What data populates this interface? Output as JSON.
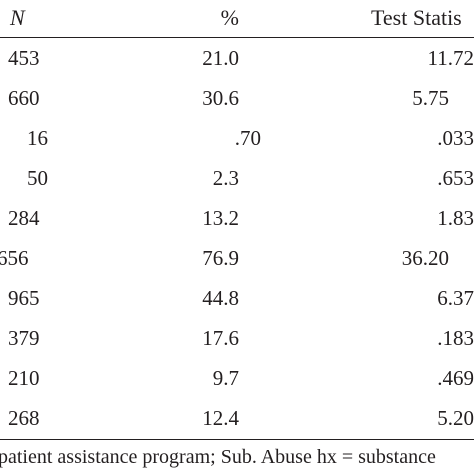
{
  "table": {
    "headers": {
      "n": "N",
      "pct": "%",
      "test": "Test Statis"
    },
    "rows": [
      {
        "n": "453",
        "pct": "21.0",
        "test": "11.72"
      },
      {
        "n": "660",
        "pct": "30.6",
        "test": "5.75"
      },
      {
        "n": "16",
        "pct": ".70",
        "test": ".033"
      },
      {
        "n": "50",
        "pct": "2.3",
        "test": ".653"
      },
      {
        "n": "284",
        "pct": "13.2",
        "test": "1.83"
      },
      {
        "n": "656",
        "pct": "76.9",
        "test": "36.20"
      },
      {
        "n": "965",
        "pct": "44.8",
        "test": "6.37"
      },
      {
        "n": "379",
        "pct": "17.6",
        "test": ".183"
      },
      {
        "n": "210",
        "pct": "9.7",
        "test": ".469"
      },
      {
        "n": "268",
        "pct": "12.4",
        "test": "5.20"
      }
    ],
    "footnote": "patient assistance program; Sub. Abuse hx = substance"
  }
}
